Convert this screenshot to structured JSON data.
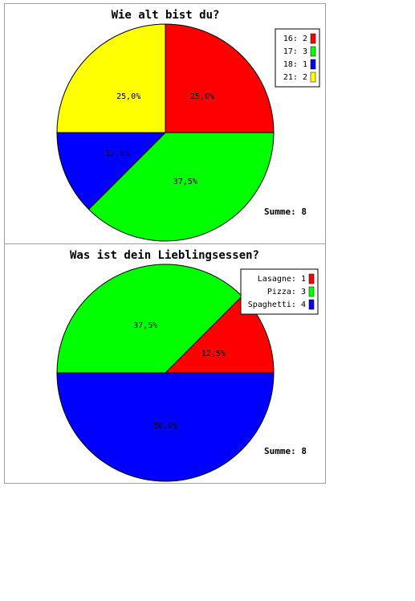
{
  "chart_data": [
    {
      "type": "pie",
      "title": "Wie alt bist du?",
      "slices": [
        {
          "label": "16",
          "value": 2,
          "percent_label": "25,0%",
          "color": "#ff0000"
        },
        {
          "label": "17",
          "value": 3,
          "percent_label": "37,5%",
          "color": "#00ff00"
        },
        {
          "label": "18",
          "value": 1,
          "percent_label": "12,5%",
          "color": "#0000ff"
        },
        {
          "label": "21",
          "value": 2,
          "percent_label": "25,0%",
          "color": "#ffff00"
        }
      ],
      "legend": [
        "16: 2",
        "17: 3",
        "18: 1",
        "21: 2"
      ],
      "legend_position": "top-right",
      "sum_label": "Summe: 8"
    },
    {
      "type": "pie",
      "title": "Was ist dein Lieblingsessen?",
      "slices": [
        {
          "label": "Lasagne",
          "value": 1,
          "percent_label": "12,5%",
          "color": "#ff0000"
        },
        {
          "label": "Pizza",
          "value": 3,
          "percent_label": "37,5%",
          "color": "#00ff00"
        },
        {
          "label": "Spaghetti",
          "value": 4,
          "percent_label": "50,0%",
          "color": "#0000ff"
        }
      ],
      "legend": [
        "Lasagne: 1",
        "Pizza: 3",
        "Spaghetti: 4"
      ],
      "legend_position": "top-right",
      "sum_label": "Summe: 8"
    }
  ]
}
